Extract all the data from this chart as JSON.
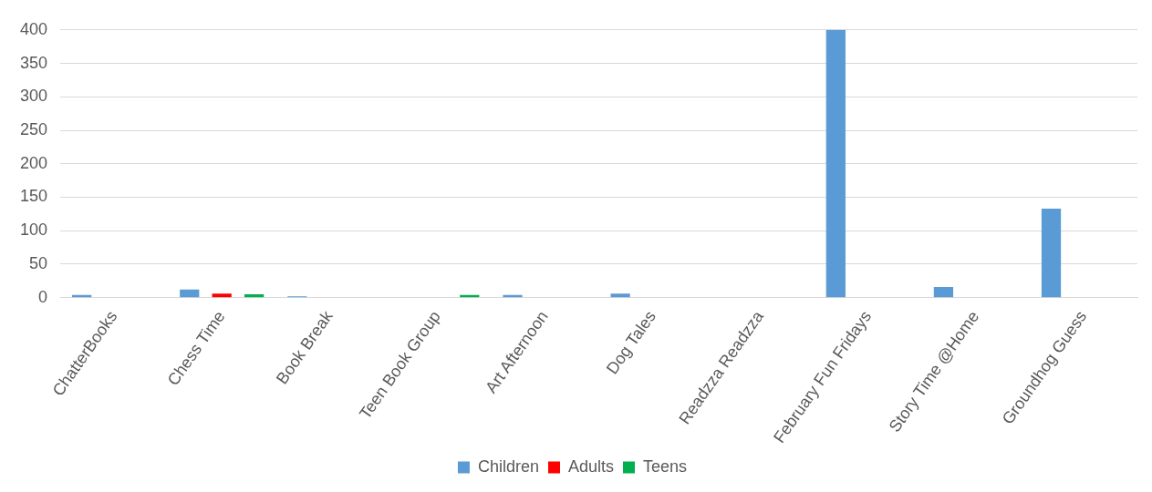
{
  "chart_data": {
    "type": "bar",
    "categories": [
      "ChatterBooks",
      "Chess Time",
      "Book Break",
      "Teen Book Group",
      "Art Afternoon",
      "Dog Tales",
      "Readzza Readzza",
      "February Fun Fridays",
      "Story Time @Home",
      "Groundhog Guess"
    ],
    "series": [
      {
        "name": "Children",
        "color": "#5b9bd5",
        "values": [
          4,
          12,
          2,
          0,
          4,
          6,
          0,
          400,
          16,
          133
        ]
      },
      {
        "name": "Adults",
        "color": "#ff0000",
        "values": [
          0,
          6,
          0,
          0,
          0,
          0,
          0,
          0,
          0,
          0
        ]
      },
      {
        "name": "Teens",
        "color": "#00b050",
        "values": [
          0,
          5,
          0,
          4,
          0,
          0,
          0,
          0,
          0,
          0
        ]
      }
    ],
    "ylim": [
      0,
      400
    ],
    "yticks": [
      0,
      50,
      100,
      150,
      200,
      250,
      300,
      350,
      400
    ],
    "grid": "y",
    "legend": "bottom"
  }
}
